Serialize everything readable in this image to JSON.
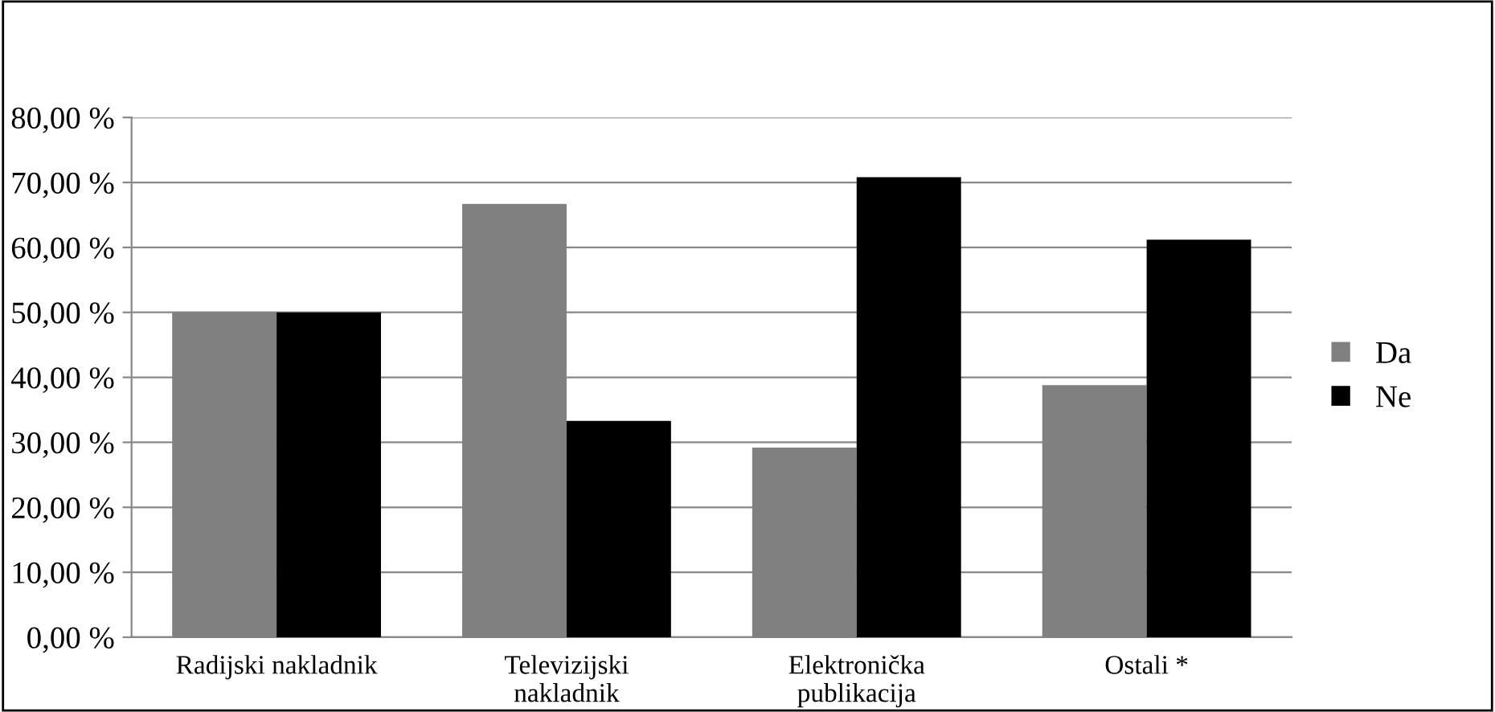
{
  "chart_data": {
    "type": "bar",
    "categories": [
      "Radijski nakladnik",
      "Televizijski\nnakladnik",
      "Elektronička\npublikacija",
      "Ostali *"
    ],
    "series": [
      {
        "name": "Da",
        "color": "#808080",
        "values": [
          50.0,
          66.7,
          29.2,
          38.8
        ]
      },
      {
        "name": "Ne",
        "color": "#000000",
        "values": [
          50.0,
          33.3,
          70.8,
          61.2
        ]
      }
    ],
    "ylim": [
      0,
      80
    ],
    "yticks": [
      {
        "value": 0,
        "label": "0,00 %"
      },
      {
        "value": 10,
        "label": "10,00 %"
      },
      {
        "value": 20,
        "label": "20,00 %"
      },
      {
        "value": 30,
        "label": "30,00 %"
      },
      {
        "value": 40,
        "label": "40,00 %"
      },
      {
        "value": 50,
        "label": "50,00 %"
      },
      {
        "value": 60,
        "label": "60,00 %"
      },
      {
        "value": 70,
        "label": "70,00 %"
      },
      {
        "value": 80,
        "label": "80,00 %"
      }
    ],
    "grid": "y",
    "legend": "right"
  }
}
